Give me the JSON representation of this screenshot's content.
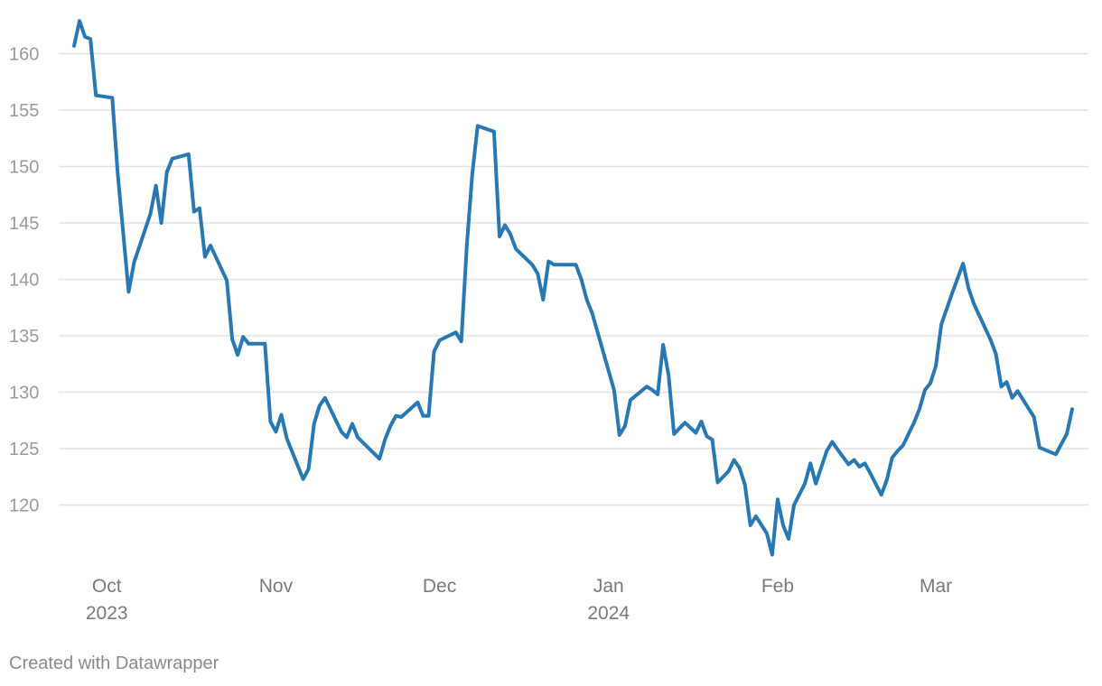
{
  "chart_data": {
    "type": "line",
    "title": "",
    "xlabel": "",
    "ylabel": "",
    "ylim": [
      115,
      163
    ],
    "y_ticks": [
      120,
      125,
      130,
      135,
      140,
      145,
      150,
      155,
      160
    ],
    "x_range": [
      "2023-09-25",
      "2024-03-26"
    ],
    "x_ticks": [
      {
        "date": "2023-10-01",
        "label": "Oct",
        "sublabel": "2023"
      },
      {
        "date": "2023-11-01",
        "label": "Nov",
        "sublabel": ""
      },
      {
        "date": "2023-12-01",
        "label": "Dec",
        "sublabel": ""
      },
      {
        "date": "2024-01-01",
        "label": "Jan",
        "sublabel": "2024"
      },
      {
        "date": "2024-02-01",
        "label": "Feb",
        "sublabel": ""
      },
      {
        "date": "2024-03-01",
        "label": "Mar",
        "sublabel": ""
      }
    ],
    "grid": true,
    "legend": "none",
    "series": [
      {
        "color": "#2878b3",
        "points": [
          [
            "2023-09-25",
            160.7
          ],
          [
            "2023-09-26",
            162.9
          ],
          [
            "2023-09-27",
            161.5
          ],
          [
            "2023-09-28",
            161.3
          ],
          [
            "2023-09-29",
            156.3
          ],
          [
            "2023-10-02",
            156.1
          ],
          [
            "2023-10-03",
            149.4
          ],
          [
            "2023-10-05",
            138.9
          ],
          [
            "2023-10-06",
            141.5
          ],
          [
            "2023-10-09",
            145.8
          ],
          [
            "2023-10-10",
            148.3
          ],
          [
            "2023-10-11",
            145.0
          ],
          [
            "2023-10-12",
            149.5
          ],
          [
            "2023-10-13",
            150.7
          ],
          [
            "2023-10-16",
            151.1
          ],
          [
            "2023-10-17",
            146.0
          ],
          [
            "2023-10-18",
            146.3
          ],
          [
            "2023-10-19",
            142.0
          ],
          [
            "2023-10-20",
            143.0
          ],
          [
            "2023-10-23",
            139.9
          ],
          [
            "2023-10-24",
            134.7
          ],
          [
            "2023-10-25",
            133.3
          ],
          [
            "2023-10-26",
            134.9
          ],
          [
            "2023-10-27",
            134.3
          ],
          [
            "2023-10-30",
            134.3
          ],
          [
            "2023-10-31",
            127.4
          ],
          [
            "2023-11-01",
            126.5
          ],
          [
            "2023-11-02",
            128.0
          ],
          [
            "2023-11-03",
            125.9
          ],
          [
            "2023-11-06",
            122.3
          ],
          [
            "2023-11-07",
            123.2
          ],
          [
            "2023-11-08",
            127.2
          ],
          [
            "2023-11-09",
            128.8
          ],
          [
            "2023-11-10",
            129.5
          ],
          [
            "2023-11-13",
            126.5
          ],
          [
            "2023-11-14",
            126.0
          ],
          [
            "2023-11-15",
            127.2
          ],
          [
            "2023-11-16",
            126.0
          ],
          [
            "2023-11-20",
            124.1
          ],
          [
            "2023-11-21",
            125.8
          ],
          [
            "2023-11-22",
            127.0
          ],
          [
            "2023-11-23",
            127.9
          ],
          [
            "2023-11-24",
            127.8
          ],
          [
            "2023-11-27",
            129.1
          ],
          [
            "2023-11-28",
            127.9
          ],
          [
            "2023-11-29",
            127.9
          ],
          [
            "2023-11-30",
            133.6
          ],
          [
            "2023-12-01",
            134.6
          ],
          [
            "2023-12-04",
            135.3
          ],
          [
            "2023-12-05",
            134.5
          ],
          [
            "2023-12-06",
            143.0
          ],
          [
            "2023-12-07",
            149.3
          ],
          [
            "2023-12-08",
            153.6
          ],
          [
            "2023-12-11",
            153.1
          ],
          [
            "2023-12-12",
            143.8
          ],
          [
            "2023-12-13",
            144.8
          ],
          [
            "2023-12-14",
            144.0
          ],
          [
            "2023-12-15",
            142.7
          ],
          [
            "2023-12-18",
            141.3
          ],
          [
            "2023-12-19",
            140.5
          ],
          [
            "2023-12-20",
            138.2
          ],
          [
            "2023-12-21",
            141.6
          ],
          [
            "2023-12-22",
            141.3
          ],
          [
            "2023-12-26",
            141.3
          ],
          [
            "2023-12-27",
            140.0
          ],
          [
            "2023-12-28",
            138.2
          ],
          [
            "2023-12-29",
            137.0
          ],
          [
            "2024-01-02",
            130.2
          ],
          [
            "2024-01-03",
            126.2
          ],
          [
            "2024-01-04",
            127.0
          ],
          [
            "2024-01-05",
            129.3
          ],
          [
            "2024-01-08",
            130.5
          ],
          [
            "2024-01-09",
            130.2
          ],
          [
            "2024-01-10",
            129.8
          ],
          [
            "2024-01-11",
            134.2
          ],
          [
            "2024-01-12",
            131.5
          ],
          [
            "2024-01-13",
            126.3
          ],
          [
            "2024-01-15",
            127.3
          ],
          [
            "2024-01-17",
            126.4
          ],
          [
            "2024-01-18",
            127.4
          ],
          [
            "2024-01-19",
            126.1
          ],
          [
            "2024-01-20",
            125.8
          ],
          [
            "2024-01-21",
            122.0
          ],
          [
            "2024-01-23",
            123.0
          ],
          [
            "2024-01-24",
            124.0
          ],
          [
            "2024-01-25",
            123.3
          ],
          [
            "2024-01-26",
            121.8
          ],
          [
            "2024-01-27",
            118.2
          ],
          [
            "2024-01-28",
            119.0
          ],
          [
            "2024-01-30",
            117.5
          ],
          [
            "2024-01-31",
            115.6
          ],
          [
            "2024-02-01",
            120.5
          ],
          [
            "2024-02-02",
            118.2
          ],
          [
            "2024-02-03",
            117.0
          ],
          [
            "2024-02-04",
            120.0
          ],
          [
            "2024-02-06",
            121.9
          ],
          [
            "2024-02-07",
            123.7
          ],
          [
            "2024-02-08",
            121.9
          ],
          [
            "2024-02-10",
            124.8
          ],
          [
            "2024-02-11",
            125.6
          ],
          [
            "2024-02-12",
            124.9
          ],
          [
            "2024-02-14",
            123.6
          ],
          [
            "2024-02-15",
            124.0
          ],
          [
            "2024-02-16",
            123.4
          ],
          [
            "2024-02-17",
            123.7
          ],
          [
            "2024-02-18",
            122.8
          ],
          [
            "2024-02-20",
            120.9
          ],
          [
            "2024-02-21",
            122.2
          ],
          [
            "2024-02-22",
            124.2
          ],
          [
            "2024-02-23",
            124.8
          ],
          [
            "2024-02-24",
            125.3
          ],
          [
            "2024-02-26",
            127.3
          ],
          [
            "2024-02-27",
            128.5
          ],
          [
            "2024-02-28",
            130.2
          ],
          [
            "2024-02-29",
            130.8
          ],
          [
            "2024-03-01",
            132.3
          ],
          [
            "2024-03-02",
            136.0
          ],
          [
            "2024-03-04",
            138.8
          ],
          [
            "2024-03-06",
            141.4
          ],
          [
            "2024-03-07",
            139.2
          ],
          [
            "2024-03-08",
            137.8
          ],
          [
            "2024-03-11",
            134.7
          ],
          [
            "2024-03-12",
            133.4
          ],
          [
            "2024-03-13",
            130.5
          ],
          [
            "2024-03-14",
            130.9
          ],
          [
            "2024-03-15",
            129.5
          ],
          [
            "2024-03-16",
            130.1
          ],
          [
            "2024-03-19",
            127.8
          ],
          [
            "2024-03-20",
            125.1
          ],
          [
            "2024-03-22",
            124.7
          ],
          [
            "2024-03-23",
            124.5
          ],
          [
            "2024-03-25",
            126.3
          ],
          [
            "2024-03-26",
            128.5
          ]
        ]
      }
    ]
  },
  "footer": {
    "credit": "Created with Datawrapper"
  }
}
